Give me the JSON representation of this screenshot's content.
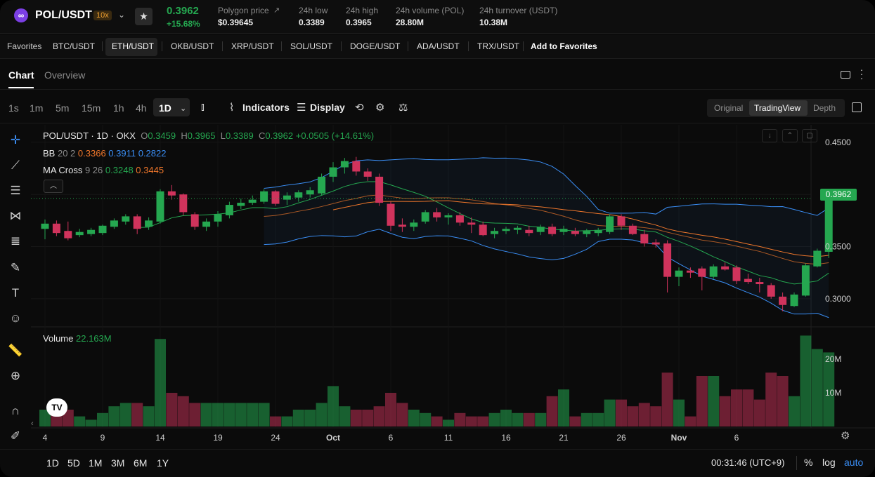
{
  "ticker": {
    "pair": "POL/USDT",
    "leverage": "10x",
    "last_price": "0.3962",
    "change_pct": "+15.68%",
    "stats": [
      {
        "label": "Polygon price",
        "value": "$0.39645"
      },
      {
        "label": "24h low",
        "value": "0.3389"
      },
      {
        "label": "24h high",
        "value": "0.3965"
      },
      {
        "label": "24h volume (POL)",
        "value": "28.80M"
      },
      {
        "label": "24h turnover (USDT)",
        "value": "10.38M"
      }
    ]
  },
  "favorites": {
    "label": "Favorites",
    "items": [
      "BTC/USDT",
      "ETH/USDT",
      "OKB/USDT",
      "XRP/USDT",
      "SOL/USDT",
      "DOGE/USDT",
      "ADA/USDT",
      "TRX/USDT"
    ],
    "active": "ETH/USDT",
    "add_label": "Add to Favorites"
  },
  "tabs": {
    "chart": "Chart",
    "overview": "Overview"
  },
  "toolbar": {
    "timeframes": [
      "1s",
      "1m",
      "5m",
      "15m",
      "1h",
      "4h"
    ],
    "active_timeframe": "1D",
    "indicators": "Indicators",
    "display": "Display",
    "views": [
      "Original",
      "TradingView",
      "Depth"
    ],
    "active_view": "TradingView"
  },
  "legend": {
    "title": "POL/USDT · 1D · OKX",
    "o": "0.3459",
    "h": "0.3965",
    "l": "0.3389",
    "c": "0.3962",
    "chg": "+0.0505 (+14.61%)",
    "bb_label": "BB",
    "bb_params": "20 2",
    "bb_mid": "0.3366",
    "bb_up": "0.3911",
    "bb_low": "0.2822",
    "ma_label": "MA Cross",
    "ma_params": "9 26",
    "ma_fast": "0.3248",
    "ma_slow": "0.3445",
    "vol_label": "Volume",
    "vol_value": "22.163M"
  },
  "colors": {
    "up": "#25a750",
    "down": "#d0335c",
    "bb": "#3a8ef5",
    "ma_fast": "#25a750",
    "ma_slow": "#f0772b"
  },
  "chart_data": {
    "type": "candlestick",
    "price_axis_ticks": [
      "0.4500",
      "0.3500",
      "0.3000"
    ],
    "volume_axis_ticks": [
      "20M",
      "10M"
    ],
    "x_ticks": [
      "4",
      "9",
      "14",
      "19",
      "24",
      "Oct",
      "6",
      "11",
      "16",
      "21",
      "26",
      "Nov",
      "6"
    ],
    "ylim": [
      0.275,
      0.46
    ],
    "candles": [
      {
        "o": 0.367,
        "h": 0.376,
        "l": 0.357,
        "c": 0.372,
        "v": 5
      },
      {
        "o": 0.372,
        "h": 0.375,
        "l": 0.36,
        "c": 0.363,
        "v": 5
      },
      {
        "o": 0.365,
        "h": 0.374,
        "l": 0.356,
        "c": 0.358,
        "v": 5
      },
      {
        "o": 0.361,
        "h": 0.367,
        "l": 0.359,
        "c": 0.364,
        "v": 3
      },
      {
        "o": 0.362,
        "h": 0.368,
        "l": 0.36,
        "c": 0.366,
        "v": 2
      },
      {
        "o": 0.363,
        "h": 0.371,
        "l": 0.361,
        "c": 0.37,
        "v": 4
      },
      {
        "o": 0.369,
        "h": 0.377,
        "l": 0.367,
        "c": 0.375,
        "v": 6
      },
      {
        "o": 0.374,
        "h": 0.381,
        "l": 0.371,
        "c": 0.379,
        "v": 7
      },
      {
        "o": 0.379,
        "h": 0.381,
        "l": 0.362,
        "c": 0.367,
        "v": 7
      },
      {
        "o": 0.369,
        "h": 0.378,
        "l": 0.366,
        "c": 0.375,
        "v": 6
      },
      {
        "o": 0.374,
        "h": 0.405,
        "l": 0.372,
        "c": 0.403,
        "v": 26
      },
      {
        "o": 0.403,
        "h": 0.409,
        "l": 0.395,
        "c": 0.399,
        "v": 10
      },
      {
        "o": 0.4,
        "h": 0.401,
        "l": 0.38,
        "c": 0.383,
        "v": 9
      },
      {
        "o": 0.381,
        "h": 0.383,
        "l": 0.366,
        "c": 0.369,
        "v": 7
      },
      {
        "o": 0.369,
        "h": 0.377,
        "l": 0.365,
        "c": 0.374,
        "v": 7
      },
      {
        "o": 0.374,
        "h": 0.384,
        "l": 0.369,
        "c": 0.381,
        "v": 7
      },
      {
        "o": 0.38,
        "h": 0.393,
        "l": 0.377,
        "c": 0.39,
        "v": 7
      },
      {
        "o": 0.389,
        "h": 0.396,
        "l": 0.386,
        "c": 0.392,
        "v": 7
      },
      {
        "o": 0.392,
        "h": 0.399,
        "l": 0.39,
        "c": 0.395,
        "v": 7
      },
      {
        "o": 0.393,
        "h": 0.405,
        "l": 0.391,
        "c": 0.403,
        "v": 7
      },
      {
        "o": 0.403,
        "h": 0.404,
        "l": 0.389,
        "c": 0.391,
        "v": 3
      },
      {
        "o": 0.395,
        "h": 0.402,
        "l": 0.39,
        "c": 0.399,
        "v": 3
      },
      {
        "o": 0.397,
        "h": 0.404,
        "l": 0.393,
        "c": 0.402,
        "v": 5
      },
      {
        "o": 0.4,
        "h": 0.407,
        "l": 0.397,
        "c": 0.404,
        "v": 5
      },
      {
        "o": 0.401,
        "h": 0.42,
        "l": 0.399,
        "c": 0.417,
        "v": 7
      },
      {
        "o": 0.417,
        "h": 0.431,
        "l": 0.412,
        "c": 0.426,
        "v": 12
      },
      {
        "o": 0.426,
        "h": 0.435,
        "l": 0.42,
        "c": 0.432,
        "v": 6
      },
      {
        "o": 0.432,
        "h": 0.436,
        "l": 0.418,
        "c": 0.422,
        "v": 5
      },
      {
        "o": 0.422,
        "h": 0.425,
        "l": 0.413,
        "c": 0.417,
        "v": 5
      },
      {
        "o": 0.417,
        "h": 0.42,
        "l": 0.389,
        "c": 0.392,
        "v": 6
      },
      {
        "o": 0.391,
        "h": 0.393,
        "l": 0.365,
        "c": 0.37,
        "v": 10
      },
      {
        "o": 0.371,
        "h": 0.377,
        "l": 0.364,
        "c": 0.369,
        "v": 7
      },
      {
        "o": 0.369,
        "h": 0.376,
        "l": 0.365,
        "c": 0.373,
        "v": 5
      },
      {
        "o": 0.374,
        "h": 0.385,
        "l": 0.372,
        "c": 0.383,
        "v": 4
      },
      {
        "o": 0.383,
        "h": 0.387,
        "l": 0.374,
        "c": 0.378,
        "v": 3
      },
      {
        "o": 0.378,
        "h": 0.382,
        "l": 0.371,
        "c": 0.38,
        "v": 2
      },
      {
        "o": 0.38,
        "h": 0.383,
        "l": 0.37,
        "c": 0.373,
        "v": 4
      },
      {
        "o": 0.373,
        "h": 0.378,
        "l": 0.363,
        "c": 0.371,
        "v": 3
      },
      {
        "o": 0.371,
        "h": 0.374,
        "l": 0.36,
        "c": 0.361,
        "v": 3
      },
      {
        "o": 0.362,
        "h": 0.368,
        "l": 0.358,
        "c": 0.365,
        "v": 4
      },
      {
        "o": 0.365,
        "h": 0.369,
        "l": 0.362,
        "c": 0.367,
        "v": 5
      },
      {
        "o": 0.366,
        "h": 0.37,
        "l": 0.362,
        "c": 0.368,
        "v": 4
      },
      {
        "o": 0.366,
        "h": 0.37,
        "l": 0.36,
        "c": 0.363,
        "v": 4
      },
      {
        "o": 0.364,
        "h": 0.371,
        "l": 0.361,
        "c": 0.369,
        "v": 4
      },
      {
        "o": 0.369,
        "h": 0.372,
        "l": 0.36,
        "c": 0.362,
        "v": 9
      },
      {
        "o": 0.364,
        "h": 0.37,
        "l": 0.361,
        "c": 0.367,
        "v": 11
      },
      {
        "o": 0.365,
        "h": 0.368,
        "l": 0.36,
        "c": 0.362,
        "v": 3
      },
      {
        "o": 0.362,
        "h": 0.367,
        "l": 0.359,
        "c": 0.365,
        "v": 4
      },
      {
        "o": 0.363,
        "h": 0.368,
        "l": 0.36,
        "c": 0.366,
        "v": 4
      },
      {
        "o": 0.364,
        "h": 0.381,
        "l": 0.362,
        "c": 0.379,
        "v": 8
      },
      {
        "o": 0.379,
        "h": 0.381,
        "l": 0.366,
        "c": 0.37,
        "v": 8
      },
      {
        "o": 0.37,
        "h": 0.372,
        "l": 0.361,
        "c": 0.362,
        "v": 6
      },
      {
        "o": 0.362,
        "h": 0.366,
        "l": 0.35,
        "c": 0.353,
        "v": 7
      },
      {
        "o": 0.354,
        "h": 0.357,
        "l": 0.349,
        "c": 0.352,
        "v": 6
      },
      {
        "o": 0.353,
        "h": 0.356,
        "l": 0.306,
        "c": 0.321,
        "v": 16
      },
      {
        "o": 0.321,
        "h": 0.33,
        "l": 0.312,
        "c": 0.327,
        "v": 8
      },
      {
        "o": 0.327,
        "h": 0.33,
        "l": 0.32,
        "c": 0.325,
        "v": 3
      },
      {
        "o": 0.329,
        "h": 0.331,
        "l": 0.308,
        "c": 0.321,
        "v": 15
      },
      {
        "o": 0.321,
        "h": 0.333,
        "l": 0.319,
        "c": 0.331,
        "v": 15
      },
      {
        "o": 0.331,
        "h": 0.335,
        "l": 0.327,
        "c": 0.328,
        "v": 9
      },
      {
        "o": 0.33,
        "h": 0.332,
        "l": 0.314,
        "c": 0.317,
        "v": 11
      },
      {
        "o": 0.319,
        "h": 0.324,
        "l": 0.314,
        "c": 0.316,
        "v": 11
      },
      {
        "o": 0.316,
        "h": 0.32,
        "l": 0.306,
        "c": 0.314,
        "v": 8
      },
      {
        "o": 0.313,
        "h": 0.315,
        "l": 0.3,
        "c": 0.302,
        "v": 16
      },
      {
        "o": 0.302,
        "h": 0.306,
        "l": 0.288,
        "c": 0.294,
        "v": 15
      },
      {
        "o": 0.293,
        "h": 0.306,
        "l": 0.292,
        "c": 0.304,
        "v": 9
      },
      {
        "o": 0.303,
        "h": 0.334,
        "l": 0.302,
        "c": 0.332,
        "v": 27
      },
      {
        "o": 0.331,
        "h": 0.348,
        "l": 0.33,
        "c": 0.346,
        "v": 23
      },
      {
        "o": 0.345,
        "h": 0.397,
        "l": 0.339,
        "c": 0.396,
        "v": 22
      }
    ]
  }
}
